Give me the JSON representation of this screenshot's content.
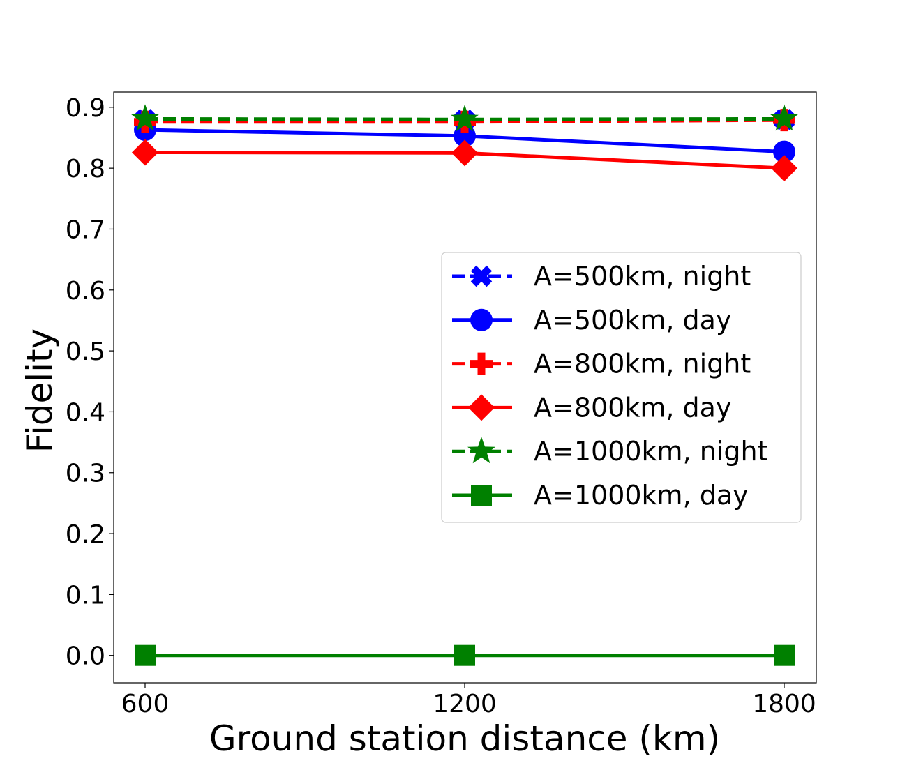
{
  "chart_data": {
    "type": "line",
    "title": "",
    "xlabel": "Ground station distance (km)",
    "ylabel": "Fidelity",
    "x": [
      600,
      1200,
      1800
    ],
    "x_tick_labels": [
      "600",
      "1200",
      "1800"
    ],
    "ylim": [
      -0.045,
      0.925
    ],
    "y_ticks": [
      0.0,
      0.1,
      0.2,
      0.3,
      0.4,
      0.5,
      0.6,
      0.7,
      0.8,
      0.9
    ],
    "y_tick_labels": [
      "0.0",
      "0.1",
      "0.2",
      "0.3",
      "0.4",
      "0.5",
      "0.6",
      "0.7",
      "0.8",
      "0.9"
    ],
    "grid": false,
    "legend_position": "center-right",
    "series": [
      {
        "name": "A=500km, night",
        "values": [
          0.88,
          0.879,
          0.88
        ],
        "color": "#0000ff",
        "linestyle": "dashed",
        "marker": "x-filled"
      },
      {
        "name": "A=500km, day",
        "values": [
          0.863,
          0.853,
          0.827
        ],
        "color": "#0000ff",
        "linestyle": "solid",
        "marker": "circle"
      },
      {
        "name": "A=800km, night",
        "values": [
          0.876,
          0.876,
          0.879
        ],
        "color": "#ff0000",
        "linestyle": "dashed",
        "marker": "plus-filled"
      },
      {
        "name": "A=800km, day",
        "values": [
          0.826,
          0.825,
          0.8
        ],
        "color": "#ff0000",
        "linestyle": "solid",
        "marker": "diamond"
      },
      {
        "name": "A=1000km, night",
        "values": [
          0.881,
          0.88,
          0.881
        ],
        "color": "#008000",
        "linestyle": "dashed",
        "marker": "star"
      },
      {
        "name": "A=1000km, day",
        "values": [
          0.0,
          0.0,
          0.0
        ],
        "color": "#008000",
        "linestyle": "solid",
        "marker": "square"
      }
    ]
  }
}
